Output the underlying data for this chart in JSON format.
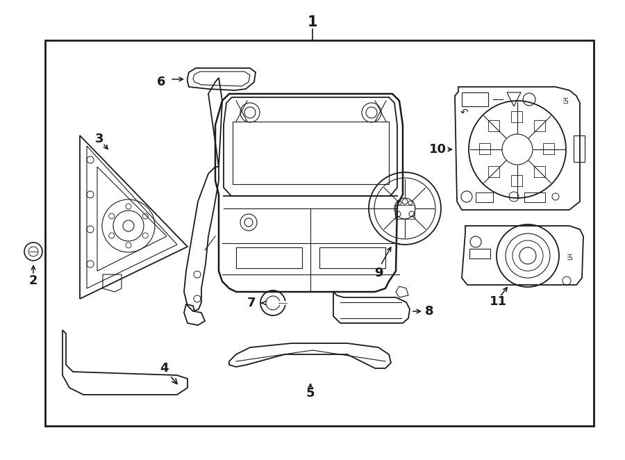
{
  "bg_color": "#ffffff",
  "line_color": "#1a1a1a",
  "fig_width": 9.0,
  "fig_height": 6.62,
  "dpi": 100
}
